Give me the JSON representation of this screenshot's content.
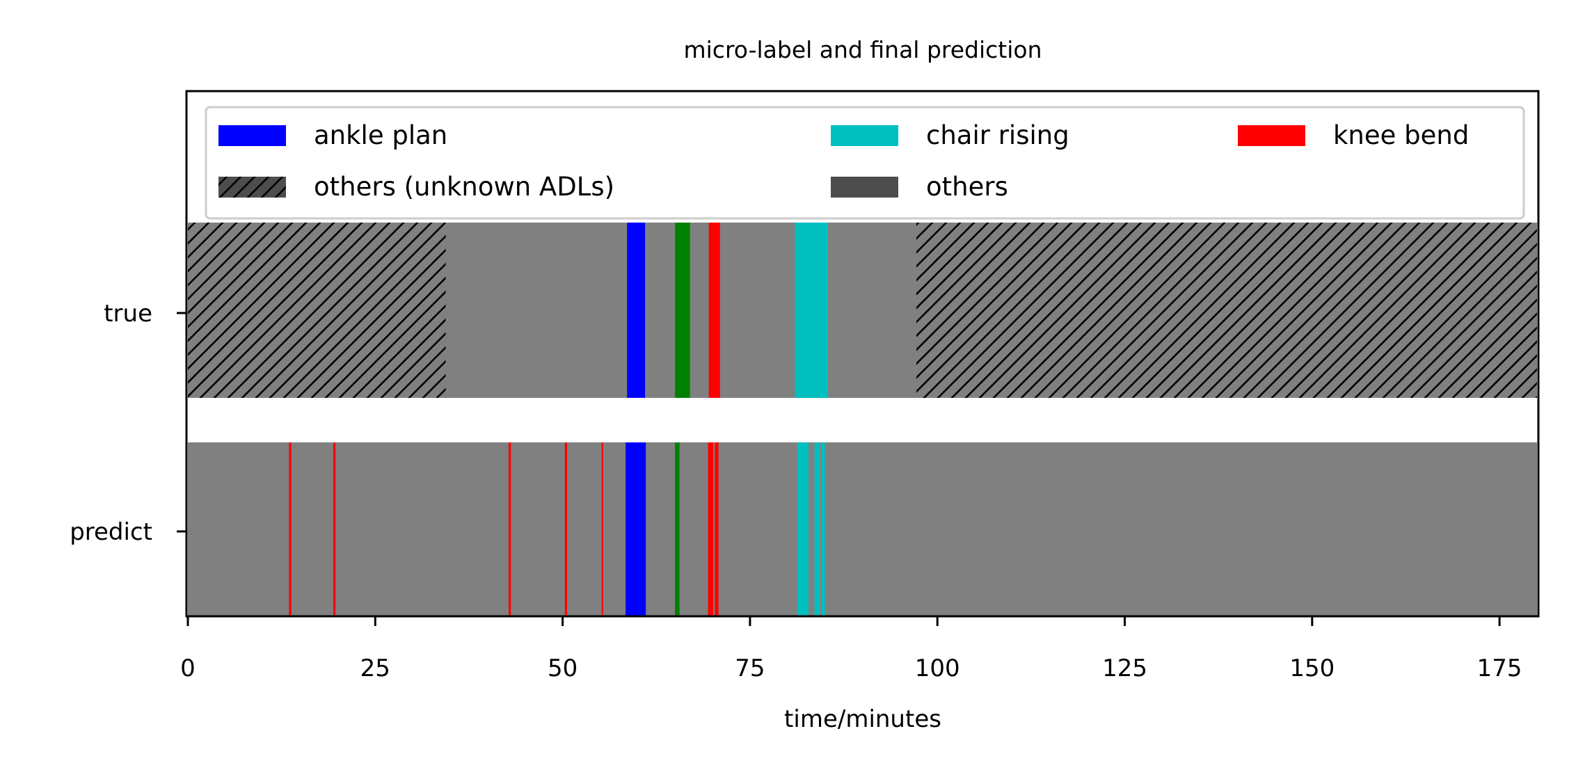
{
  "chart_data": {
    "type": "bar",
    "title": "micro-label and final prediction",
    "xlabel": "time/minutes",
    "ylabel": "",
    "xlim": [
      0,
      180
    ],
    "xticks": [
      0,
      25,
      50,
      75,
      100,
      125,
      150,
      175
    ],
    "categories": [
      "true",
      "predict"
    ],
    "grid": false,
    "legend": {
      "location": "top",
      "columns": 3,
      "entries": [
        {
          "label": "ankle plan",
          "color": "#0000ff",
          "hatch": false
        },
        {
          "label": "others (unknown ADLs)",
          "color": "#4d4d4d",
          "hatch": true
        },
        {
          "label": "chair rising",
          "color": "#00bfbf",
          "hatch": false
        },
        {
          "label": "others",
          "color": "#4d4d4d",
          "hatch": false
        },
        {
          "label": "knee bend",
          "color": "#ff0000",
          "hatch": false
        }
      ]
    },
    "colors": {
      "background": "#808080",
      "ankle plan": "#0000ff",
      "chair rising": "#00bfbf",
      "knee bend": "#ff0000",
      "green": "#008000",
      "hatch": "#000000"
    },
    "rows": {
      "true": [
        {
          "start": 0,
          "end": 34.4,
          "color": "#808080",
          "hatch": true
        },
        {
          "start": 58.6,
          "end": 61.0,
          "color": "#0000ff",
          "hatch": false
        },
        {
          "start": 65.0,
          "end": 67.0,
          "color": "#008000",
          "hatch": false
        },
        {
          "start": 69.5,
          "end": 71.0,
          "color": "#ff0000",
          "hatch": false
        },
        {
          "start": 81.0,
          "end": 85.4,
          "color": "#00bfbf",
          "hatch": false
        },
        {
          "start": 97.2,
          "end": 180.0,
          "color": "#808080",
          "hatch": true
        }
      ],
      "predict": [
        {
          "start": 13.5,
          "end": 13.8,
          "color": "#ff0000",
          "hatch": false
        },
        {
          "start": 19.4,
          "end": 19.7,
          "color": "#ff0000",
          "hatch": false
        },
        {
          "start": 42.8,
          "end": 43.1,
          "color": "#ff0000",
          "hatch": false
        },
        {
          "start": 50.3,
          "end": 50.6,
          "color": "#ff0000",
          "hatch": false
        },
        {
          "start": 55.2,
          "end": 55.4,
          "color": "#ff0000",
          "hatch": false
        },
        {
          "start": 58.4,
          "end": 61.1,
          "color": "#0000ff",
          "hatch": false
        },
        {
          "start": 65.0,
          "end": 65.6,
          "color": "#008000",
          "hatch": false
        },
        {
          "start": 69.4,
          "end": 70.1,
          "color": "#ff0000",
          "hatch": false
        },
        {
          "start": 70.3,
          "end": 70.8,
          "color": "#ff0000",
          "hatch": false
        },
        {
          "start": 81.3,
          "end": 82.8,
          "color": "#00bfbf",
          "hatch": false
        },
        {
          "start": 83.6,
          "end": 84.3,
          "color": "#00bfbf",
          "hatch": false
        },
        {
          "start": 84.5,
          "end": 85.0,
          "color": "#00bfbf",
          "hatch": false
        }
      ]
    }
  }
}
